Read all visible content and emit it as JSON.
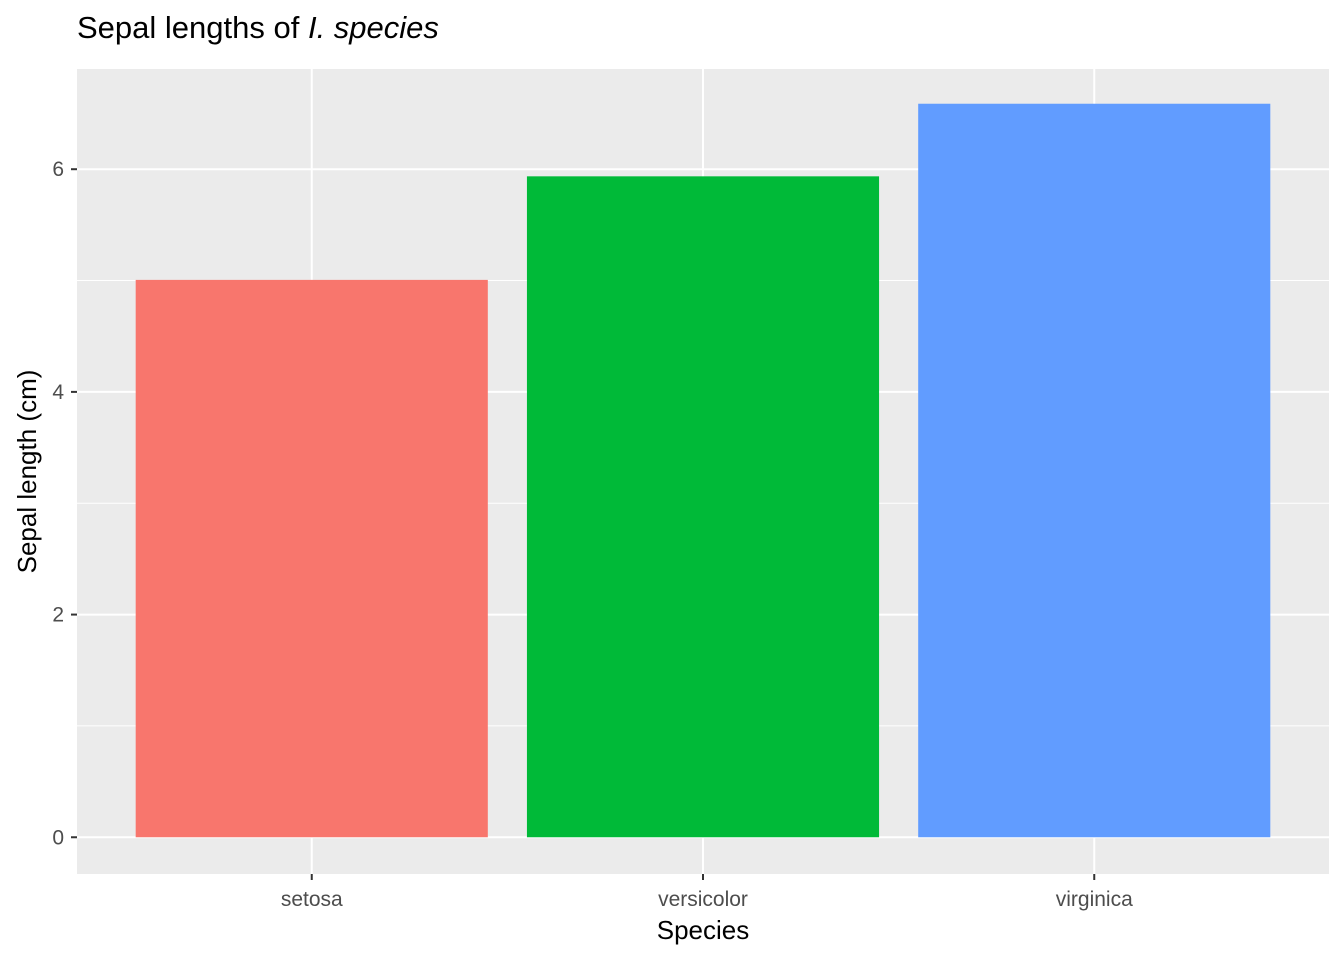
{
  "chart_data": {
    "type": "bar",
    "title": "Sepal lengths of",
    "title_italic": "I. species",
    "xlabel": "Species",
    "ylabel": "Sepal length (cm)",
    "categories": [
      "setosa",
      "versicolor",
      "virginica"
    ],
    "values": [
      5.006,
      5.936,
      6.588
    ],
    "colors": [
      "#F8766D",
      "#00BA38",
      "#619CFF"
    ],
    "ylim": [
      -0.33,
      6.9
    ],
    "yticks": [
      0,
      2,
      4,
      6
    ],
    "grid": true,
    "legend": "none",
    "panel_background": "#EBEBEB",
    "gridline_color": "#FFFFFF"
  }
}
